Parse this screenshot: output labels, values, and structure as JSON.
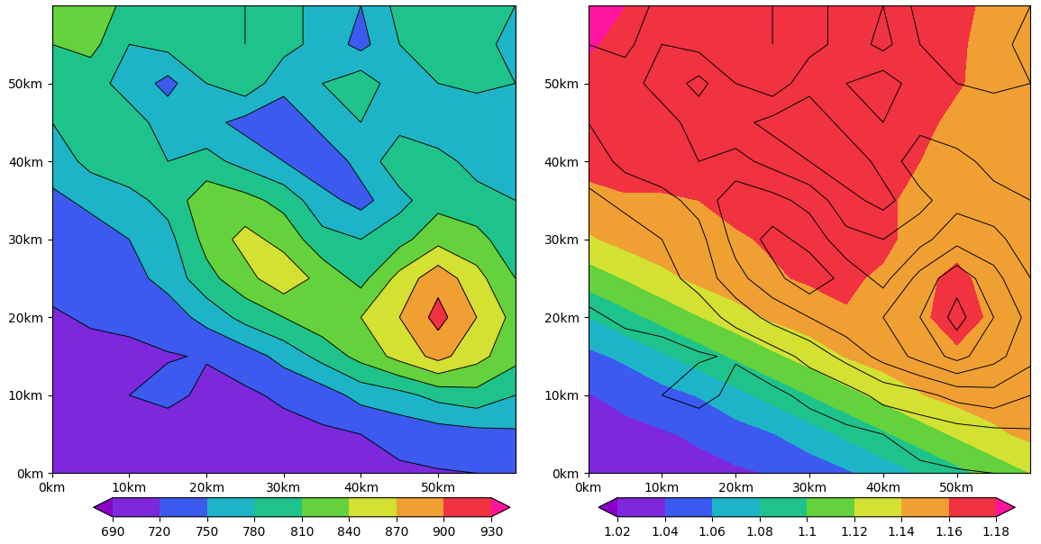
{
  "chart_data": [
    {
      "type": "contour",
      "x": [
        0,
        5,
        10,
        15,
        20,
        25,
        30,
        35,
        40,
        45,
        50,
        55,
        60
      ],
      "y": [
        0,
        5,
        10,
        15,
        20,
        25,
        30,
        35,
        40,
        45,
        50,
        55,
        60
      ],
      "cells": [
        [
          700,
          700,
          700,
          700,
          705,
          705,
          710,
          710,
          712,
          715,
          718,
          720,
          722
        ],
        [
          705,
          705,
          715,
          700,
          705,
          708,
          710,
          715,
          720,
          730,
          735,
          740,
          745
        ],
        [
          708,
          710,
          720,
          730,
          712,
          715,
          725,
          735,
          760,
          770,
          790,
          800,
          780
        ],
        [
          712,
          715,
          715,
          718,
          722,
          735,
          760,
          790,
          820,
          850,
          880,
          850,
          820
        ],
        [
          718,
          722,
          725,
          735,
          760,
          790,
          810,
          830,
          840,
          870,
          910,
          870,
          830
        ],
        [
          725,
          730,
          740,
          760,
          800,
          830,
          860,
          830,
          800,
          850,
          890,
          850,
          810
        ],
        [
          735,
          740,
          750,
          770,
          820,
          850,
          830,
          790,
          780,
          800,
          830,
          820,
          790
        ],
        [
          745,
          755,
          770,
          790,
          830,
          820,
          800,
          760,
          740,
          770,
          800,
          790,
          780
        ],
        [
          760,
          790,
          800,
          780,
          790,
          770,
          750,
          730,
          760,
          800,
          790,
          770,
          760
        ],
        [
          780,
          800,
          790,
          770,
          760,
          740,
          730,
          760,
          780,
          770,
          760,
          750,
          770
        ],
        [
          800,
          790,
          770,
          740,
          780,
          800,
          760,
          780,
          800,
          760,
          780,
          790,
          780
        ],
        [
          810,
          820,
          780,
          790,
          800,
          780,
          790,
          770,
          740,
          780,
          800,
          790,
          770
        ],
        [
          820,
          830,
          800,
          810,
          790,
          780,
          800,
          760,
          750,
          790,
          810,
          800,
          780
        ]
      ],
      "colorbar_ticks": [
        690,
        720,
        750,
        780,
        810,
        840,
        870,
        900,
        930
      ],
      "colors": [
        "#8a00c8",
        "#7d28dc",
        "#3c5af0",
        "#1eb4c8",
        "#1ec38c",
        "#64d23c",
        "#d2e132",
        "#f0a032",
        "#f03241",
        "#ff14a0"
      ],
      "xlim": [
        0,
        60
      ],
      "ylim": [
        0,
        60
      ],
      "xticks": [
        {
          "value": 0,
          "label": "0km"
        },
        {
          "value": 10,
          "label": "10km"
        },
        {
          "value": 20,
          "label": "20km"
        },
        {
          "value": 30,
          "label": "30km"
        },
        {
          "value": 40,
          "label": "40km"
        },
        {
          "value": 50,
          "label": "50km"
        }
      ],
      "yticks": [
        {
          "value": 0,
          "label": "0km"
        },
        {
          "value": 10,
          "label": "10km"
        },
        {
          "value": 20,
          "label": "20km"
        },
        {
          "value": 30,
          "label": "30km"
        },
        {
          "value": 40,
          "label": "40km"
        },
        {
          "value": 50,
          "label": "50km"
        }
      ]
    },
    {
      "type": "contour",
      "x": [
        0,
        5,
        10,
        15,
        20,
        25,
        30,
        35,
        40,
        45,
        50,
        55,
        60
      ],
      "y": [
        0,
        5,
        10,
        15,
        20,
        25,
        30,
        35,
        40,
        45,
        50,
        55,
        60
      ],
      "cells": [
        [
          1.025,
          1.028,
          1.031,
          1.034,
          1.037,
          1.041,
          1.048,
          1.057,
          1.069,
          1.081,
          1.094,
          1.107,
          1.12
        ],
        [
          1.032,
          1.035,
          1.038,
          1.043,
          1.051,
          1.059,
          1.071,
          1.084,
          1.097,
          1.11,
          1.123,
          1.136,
          1.145
        ],
        [
          1.039,
          1.045,
          1.053,
          1.061,
          1.074,
          1.087,
          1.1,
          1.113,
          1.126,
          1.139,
          1.147,
          1.15,
          1.15
        ],
        [
          1.055,
          1.064,
          1.077,
          1.09,
          1.103,
          1.116,
          1.128,
          1.141,
          1.149,
          1.152,
          1.155,
          1.152,
          1.15
        ],
        [
          1.08,
          1.093,
          1.106,
          1.119,
          1.131,
          1.143,
          1.151,
          1.159,
          1.16,
          1.155,
          1.172,
          1.155,
          1.15
        ],
        [
          1.109,
          1.121,
          1.134,
          1.145,
          1.153,
          1.158,
          1.162,
          1.162,
          1.158,
          1.155,
          1.165,
          1.152,
          1.15
        ],
        [
          1.137,
          1.147,
          1.153,
          1.155,
          1.158,
          1.162,
          1.166,
          1.165,
          1.163,
          1.155,
          1.152,
          1.15,
          1.15
        ],
        [
          1.155,
          1.158,
          1.158,
          1.16,
          1.165,
          1.168,
          1.168,
          1.166,
          1.163,
          1.155,
          1.15,
          1.15,
          1.15
        ],
        [
          1.165,
          1.168,
          1.168,
          1.168,
          1.17,
          1.17,
          1.17,
          1.168,
          1.165,
          1.16,
          1.152,
          1.15,
          1.148
        ],
        [
          1.17,
          1.17,
          1.17,
          1.17,
          1.17,
          1.17,
          1.17,
          1.17,
          1.168,
          1.165,
          1.155,
          1.15,
          1.15
        ],
        [
          1.175,
          1.172,
          1.17,
          1.17,
          1.17,
          1.17,
          1.17,
          1.17,
          1.168,
          1.165,
          1.162,
          1.152,
          1.15
        ],
        [
          1.182,
          1.175,
          1.17,
          1.17,
          1.17,
          1.17,
          1.17,
          1.17,
          1.168,
          1.165,
          1.162,
          1.155,
          1.152
        ],
        [
          1.19,
          1.18,
          1.172,
          1.17,
          1.17,
          1.17,
          1.17,
          1.17,
          1.168,
          1.165,
          1.162,
          1.158,
          1.155
        ]
      ],
      "colorbar_ticks": [
        1.02,
        1.04,
        1.06,
        1.08,
        1.1,
        1.12,
        1.14,
        1.16,
        1.18
      ],
      "colors": [
        "#8a00c8",
        "#7d28dc",
        "#3c5af0",
        "#1eb4c8",
        "#1ec38c",
        "#64d23c",
        "#d2e132",
        "#f0a032",
        "#f03241",
        "#ff14a0"
      ],
      "xlim": [
        0,
        60
      ],
      "ylim": [
        0,
        60
      ],
      "xticks": [
        {
          "value": 0,
          "label": "0km"
        },
        {
          "value": 10,
          "label": "10km"
        },
        {
          "value": 20,
          "label": "20km"
        },
        {
          "value": 30,
          "label": "30km"
        },
        {
          "value": 40,
          "label": "40km"
        },
        {
          "value": 50,
          "label": "50km"
        }
      ],
      "yticks": [
        {
          "value": 0,
          "label": "0km"
        },
        {
          "value": 10,
          "label": "10km"
        },
        {
          "value": 20,
          "label": "20km"
        },
        {
          "value": 30,
          "label": "30km"
        },
        {
          "value": 40,
          "label": "40km"
        },
        {
          "value": 50,
          "label": "50km"
        }
      ]
    }
  ]
}
